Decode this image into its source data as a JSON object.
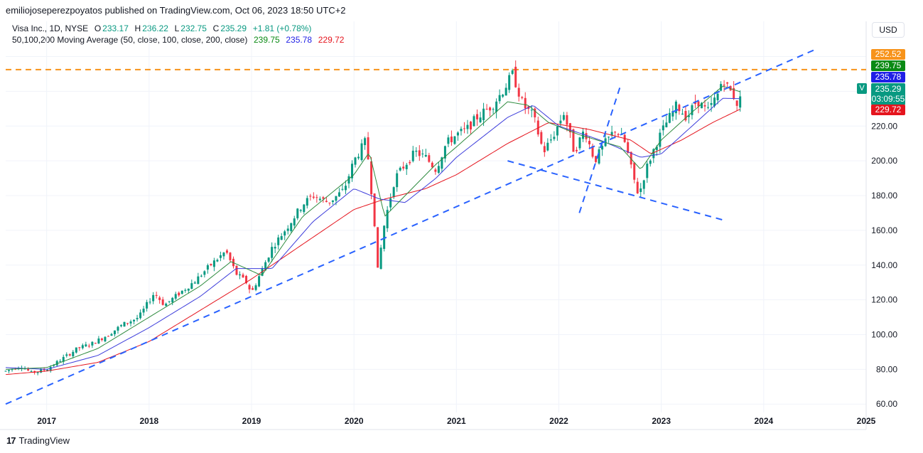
{
  "header": {
    "publisher_line": "emiliojoseperezpoyatos published on TradingView.com, Oct 06, 2023 18:50 UTC+2"
  },
  "legend": {
    "symbol": "Visa Inc., 1D, NYSE",
    "o_label": "O",
    "o_value": "233.17",
    "h_label": "H",
    "h_value": "236.22",
    "l_label": "L",
    "l_value": "232.75",
    "c_label": "C",
    "c_value": "235.29",
    "change": "+1.81 (+0.78%)",
    "ma_label": "50,100,200 Moving Average (50, close, 100, close, 200, close)",
    "ma50": "239.75",
    "ma100": "235.78",
    "ma200": "229.72"
  },
  "price_axis": {
    "currency": "USD",
    "tags": {
      "level": {
        "value": "252.52",
        "color": "#f7931a"
      },
      "ma50": {
        "value": "239.75",
        "color": "#0a8a14"
      },
      "ma100": {
        "value": "235.78",
        "color": "#1f1fe6"
      },
      "last": {
        "value": "235.29",
        "time": "03:09:55",
        "color": "#089981"
      },
      "ma200": {
        "value": "229.72",
        "color": "#e5151e"
      }
    },
    "symbol_badge": "V"
  },
  "footer": {
    "brand_mark": "17",
    "brand": "TradingView"
  },
  "chart_data": {
    "type": "candlestick",
    "symbol": "Visa Inc., 1D, NYSE",
    "y_ticks": [
      60,
      80,
      100,
      120,
      140,
      160,
      180,
      200,
      220,
      240,
      260
    ],
    "ylim": [
      56,
      268
    ],
    "x_ticks": [
      "2017",
      "2018",
      "2019",
      "2020",
      "2021",
      "2022",
      "2023",
      "2024",
      "2025"
    ],
    "xlim": [
      2016.6,
      2025.0
    ],
    "colors": {
      "up": "#089981",
      "down": "#f23645",
      "ma50": "#2e8b3e",
      "ma100": "#3d3ddb",
      "ma200": "#e5151e",
      "level": "#f7931a",
      "trend": "#2962ff"
    },
    "price_path": [
      [
        2016.6,
        79
      ],
      [
        2016.75,
        82
      ],
      [
        2016.85,
        78
      ],
      [
        2017.0,
        80
      ],
      [
        2017.15,
        86
      ],
      [
        2017.3,
        92
      ],
      [
        2017.45,
        95
      ],
      [
        2017.6,
        100
      ],
      [
        2017.75,
        106
      ],
      [
        2017.9,
        110
      ],
      [
        2018.05,
        124
      ],
      [
        2018.15,
        117
      ],
      [
        2018.3,
        124
      ],
      [
        2018.45,
        131
      ],
      [
        2018.6,
        140
      ],
      [
        2018.75,
        148
      ],
      [
        2018.85,
        135
      ],
      [
        2018.95,
        130
      ],
      [
        2019.0,
        124
      ],
      [
        2019.1,
        137
      ],
      [
        2019.2,
        150
      ],
      [
        2019.35,
        162
      ],
      [
        2019.5,
        175
      ],
      [
        2019.6,
        180
      ],
      [
        2019.75,
        176
      ],
      [
        2019.9,
        183
      ],
      [
        2020.0,
        200
      ],
      [
        2020.12,
        212
      ],
      [
        2020.2,
        165
      ],
      [
        2020.23,
        136
      ],
      [
        2020.3,
        165
      ],
      [
        2020.4,
        190
      ],
      [
        2020.5,
        198
      ],
      [
        2020.6,
        205
      ],
      [
        2020.7,
        202
      ],
      [
        2020.8,
        195
      ],
      [
        2020.9,
        210
      ],
      [
        2021.0,
        215
      ],
      [
        2021.1,
        218
      ],
      [
        2021.2,
        225
      ],
      [
        2021.35,
        232
      ],
      [
        2021.45,
        240
      ],
      [
        2021.55,
        250
      ],
      [
        2021.65,
        232
      ],
      [
        2021.75,
        226
      ],
      [
        2021.85,
        205
      ],
      [
        2021.95,
        215
      ],
      [
        2022.05,
        228
      ],
      [
        2022.15,
        205
      ],
      [
        2022.25,
        218
      ],
      [
        2022.35,
        200
      ],
      [
        2022.45,
        210
      ],
      [
        2022.55,
        218
      ],
      [
        2022.65,
        210
      ],
      [
        2022.72,
        192
      ],
      [
        2022.78,
        180
      ],
      [
        2022.85,
        195
      ],
      [
        2022.95,
        210
      ],
      [
        2023.05,
        222
      ],
      [
        2023.15,
        232
      ],
      [
        2023.25,
        225
      ],
      [
        2023.35,
        235
      ],
      [
        2023.45,
        228
      ],
      [
        2023.55,
        238
      ],
      [
        2023.6,
        248
      ],
      [
        2023.65,
        242
      ],
      [
        2023.7,
        238
      ],
      [
        2023.75,
        232
      ],
      [
        2023.77,
        235.29
      ]
    ],
    "ma50_path": [
      [
        2016.6,
        80
      ],
      [
        2017.0,
        81
      ],
      [
        2017.5,
        92
      ],
      [
        2018.0,
        110
      ],
      [
        2018.5,
        128
      ],
      [
        2018.8,
        142
      ],
      [
        2019.1,
        134
      ],
      [
        2019.5,
        168
      ],
      [
        2020.0,
        192
      ],
      [
        2020.15,
        205
      ],
      [
        2020.3,
        168
      ],
      [
        2020.5,
        180
      ],
      [
        2020.8,
        198
      ],
      [
        2021.0,
        208
      ],
      [
        2021.5,
        234
      ],
      [
        2021.7,
        232
      ],
      [
        2021.9,
        222
      ],
      [
        2022.2,
        215
      ],
      [
        2022.6,
        208
      ],
      [
        2022.8,
        195
      ],
      [
        2023.0,
        212
      ],
      [
        2023.3,
        228
      ],
      [
        2023.6,
        243
      ],
      [
        2023.77,
        239.75
      ]
    ],
    "ma100_path": [
      [
        2016.6,
        81
      ],
      [
        2017.0,
        80
      ],
      [
        2017.5,
        88
      ],
      [
        2018.0,
        104
      ],
      [
        2018.5,
        122
      ],
      [
        2018.85,
        138
      ],
      [
        2019.2,
        138
      ],
      [
        2019.6,
        165
      ],
      [
        2020.0,
        184
      ],
      [
        2020.25,
        178
      ],
      [
        2020.5,
        176
      ],
      [
        2020.8,
        190
      ],
      [
        2021.0,
        202
      ],
      [
        2021.5,
        225
      ],
      [
        2021.75,
        232
      ],
      [
        2022.0,
        220
      ],
      [
        2022.4,
        212
      ],
      [
        2022.8,
        202
      ],
      [
        2023.0,
        204
      ],
      [
        2023.3,
        220
      ],
      [
        2023.6,
        236
      ],
      [
        2023.77,
        235.78
      ]
    ],
    "ma200_path": [
      [
        2016.6,
        77
      ],
      [
        2017.0,
        79
      ],
      [
        2017.5,
        84
      ],
      [
        2018.0,
        96
      ],
      [
        2018.5,
        114
      ],
      [
        2019.0,
        132
      ],
      [
        2019.5,
        152
      ],
      [
        2020.0,
        172
      ],
      [
        2020.3,
        178
      ],
      [
        2020.7,
        184
      ],
      [
        2021.0,
        192
      ],
      [
        2021.5,
        210
      ],
      [
        2021.9,
        222
      ],
      [
        2022.3,
        218
      ],
      [
        2022.7,
        212
      ],
      [
        2022.9,
        204
      ],
      [
        2023.2,
        212
      ],
      [
        2023.5,
        222
      ],
      [
        2023.77,
        229.72
      ]
    ],
    "horizontal_level": 252.52,
    "trendlines": [
      [
        [
          2016.6,
          60
        ],
        [
          2024.5,
          264
        ]
      ],
      [
        [
          2021.5,
          200
        ],
        [
          2023.6,
          166
        ]
      ],
      [
        [
          2022.2,
          170
        ],
        [
          2022.6,
          243
        ]
      ]
    ],
    "candle_count": 230
  }
}
